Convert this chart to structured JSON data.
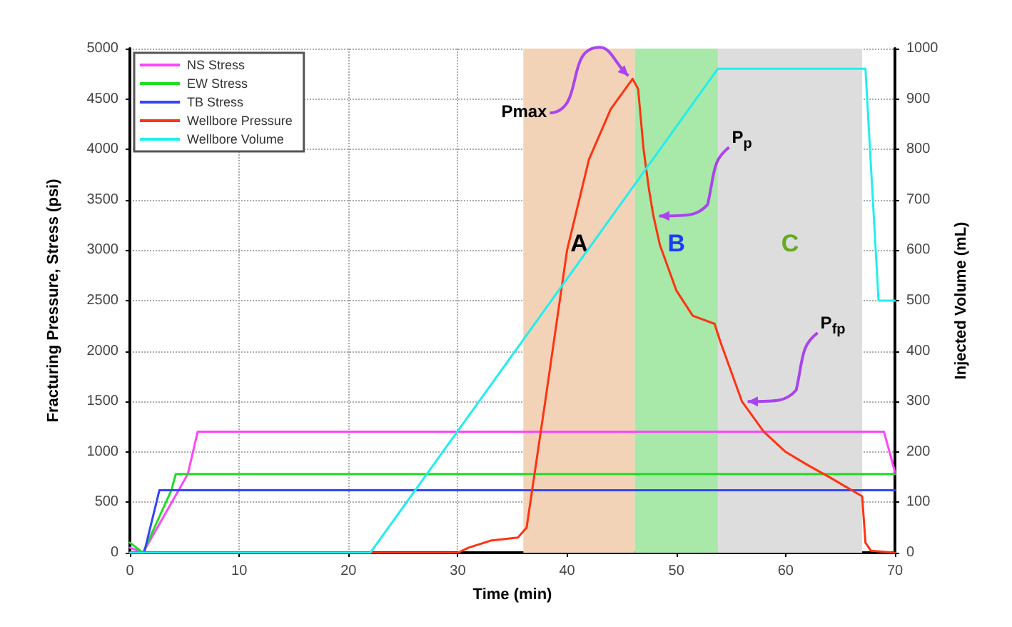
{
  "chart_data": {
    "type": "line",
    "xlabel": "Time (min)",
    "ylabel": "Fracturing Pressure, Stress (psi)",
    "y2label": "Injected Volume (mL)",
    "xlim": [
      0,
      70
    ],
    "xticks": [
      0,
      10,
      20,
      30,
      40,
      50,
      60,
      70
    ],
    "ylim": [
      0,
      5000
    ],
    "yticks": [
      0,
      500,
      1000,
      1500,
      2000,
      2500,
      3000,
      3500,
      4000,
      4500,
      5000
    ],
    "y2lim": [
      0,
      1000
    ],
    "y2ticks": [
      0,
      100,
      200,
      300,
      400,
      500,
      600,
      700,
      800,
      900,
      1000
    ],
    "grid": true,
    "legend": "top left",
    "line_style": "solid",
    "marker": "none",
    "series": [
      {
        "name": "NS Stress",
        "color": "#ff44ff",
        "x": [
          0,
          1.2,
          5.3,
          6.2,
          69,
          70
        ],
        "values": [
          50,
          0,
          780,
          1200,
          1200,
          800
        ]
      },
      {
        "name": "EW Stress",
        "color": "#22dd22",
        "x": [
          0,
          0.6,
          1.2,
          3.8,
          4.2,
          70
        ],
        "values": [
          100,
          50,
          0,
          620,
          780,
          780
        ]
      },
      {
        "name": "TB Stress",
        "color": "#3344ff",
        "x": [
          0,
          1.3,
          2.7,
          70
        ],
        "values": [
          0,
          0,
          620,
          620
        ]
      },
      {
        "name": "Wellbore Pressure",
        "color": "#ff3311",
        "x": [
          0,
          30,
          31,
          33,
          35.5,
          36.3,
          38,
          40,
          42,
          44,
          46,
          46.5,
          47,
          47.5,
          47.9,
          48.5,
          50,
          51.5,
          53.5,
          54,
          55,
          56,
          58,
          60,
          62,
          64,
          67,
          67.3,
          67.8,
          70
        ],
        "values": [
          0,
          0,
          50,
          120,
          150,
          250,
          1500,
          3000,
          3900,
          4400,
          4700,
          4600,
          4000,
          3600,
          3340,
          3050,
          2600,
          2350,
          2270,
          2100,
          1800,
          1500,
          1200,
          1000,
          870,
          750,
          560,
          100,
          20,
          0
        ]
      },
      {
        "name": "Wellbore Volume",
        "color": "#22eeee",
        "axis": "y2",
        "x": [
          0,
          22,
          53.8,
          67.3,
          68.5,
          70
        ],
        "values": [
          0,
          0,
          960,
          960,
          500,
          500
        ]
      }
    ],
    "bands": [
      {
        "axis": "x",
        "from": 36,
        "to": 46.2,
        "label": "A",
        "color": "#f2d3b8"
      },
      {
        "axis": "x",
        "from": 46.2,
        "to": 53.8,
        "label": "B",
        "color": "#a8e8a8"
      },
      {
        "axis": "x",
        "from": 53.8,
        "to": 67,
        "label": "C",
        "color": "#dddddd"
      }
    ],
    "annotations": [
      {
        "text": "Pmax",
        "x": 46,
        "y": 4700
      },
      {
        "text": "P$_{p}$",
        "x": 47.9,
        "y": 3340
      },
      {
        "text": "P$_{fp}$",
        "x": 56,
        "y": 1500
      }
    ]
  }
}
